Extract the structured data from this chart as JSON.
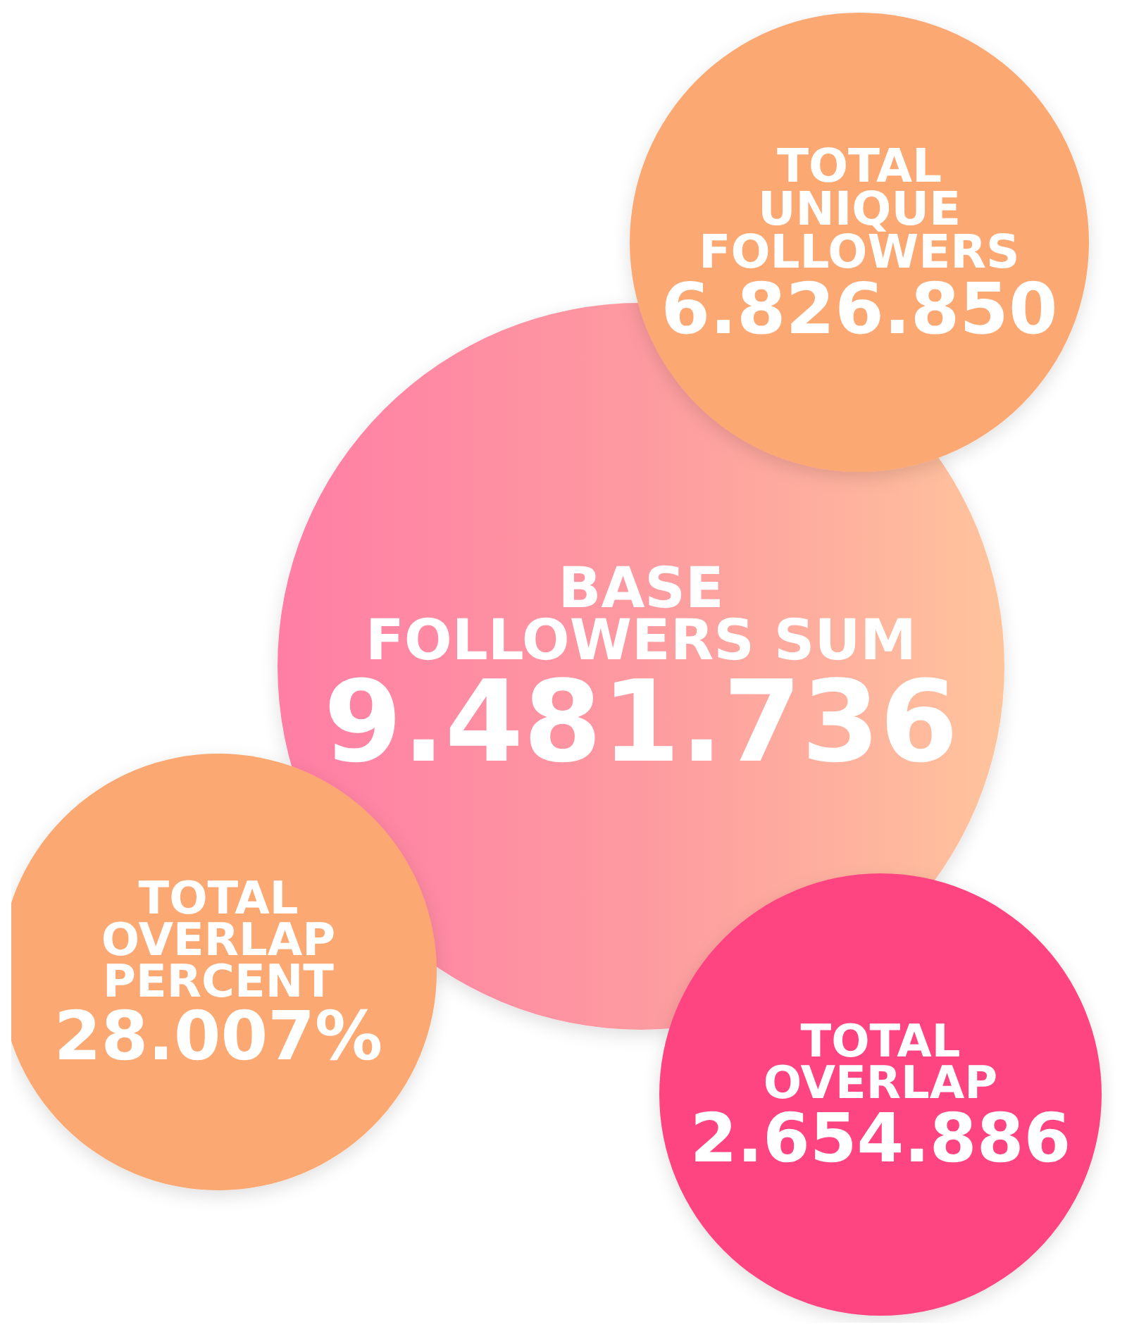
{
  "chart_data": {
    "type": "other",
    "categories": [
      "TOTAL UNIQUE FOLLOWERS",
      "BASE FOLLOWERS SUM",
      "TOTAL OVERLAP PERCENT",
      "TOTAL OVERLAP"
    ],
    "values": [
      6826850,
      9481736,
      null,
      2654886
    ],
    "value_labels": [
      "6.826.850",
      "9.481.736",
      "28.007%",
      "2.654.886"
    ],
    "colors": [
      "#fca872",
      "#fd9aa0",
      "#fca872",
      "#ff4581"
    ]
  }
}
